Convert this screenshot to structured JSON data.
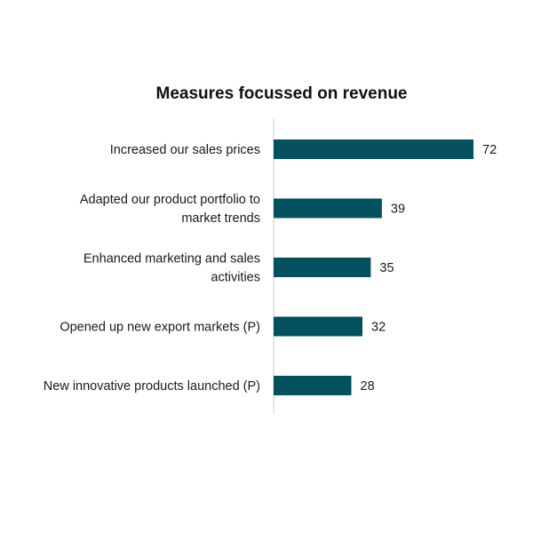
{
  "chart_data": {
    "type": "bar",
    "orientation": "horizontal",
    "title": "Measures focussed on revenue",
    "categories": [
      "Increased our sales prices",
      "Adapted our product portfolio to market trends",
      "Enhanced marketing and sales activities",
      "Opened up new export markets (P)",
      "New innovative products launched (P)"
    ],
    "category_label_lines": [
      [
        "Increased our sales prices"
      ],
      [
        "Adapted our product portfolio to",
        "market trends"
      ],
      [
        "Enhanced marketing and sales",
        "activities"
      ],
      [
        "Opened up new export markets (P)"
      ],
      [
        "New innovative products launched (P)"
      ]
    ],
    "values": [
      72,
      39,
      35,
      32,
      28
    ],
    "data_labels": [
      "72",
      "39",
      "35",
      "32",
      "28"
    ],
    "xlim": [
      0,
      100
    ],
    "grid": false,
    "legend": "none",
    "bar_color": "#03505f",
    "axis_color": "#c8c8c8"
  }
}
